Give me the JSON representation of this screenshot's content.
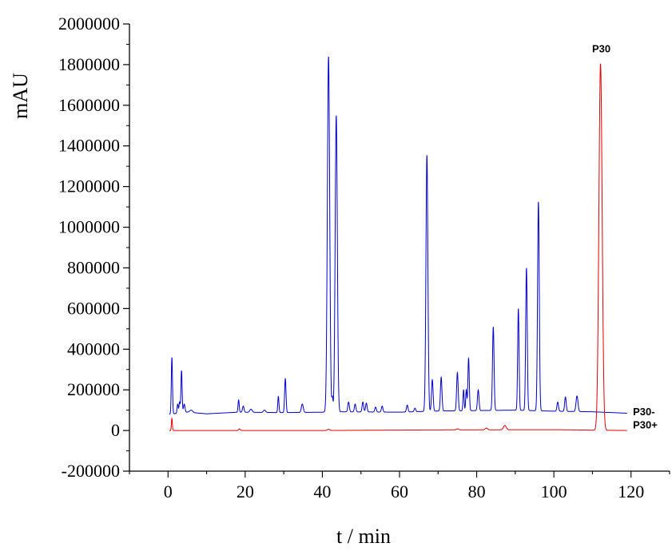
{
  "chart_data": {
    "type": "line",
    "title": "",
    "xlabel": "t / min",
    "ylabel": "mAU",
    "xlim": [
      -10,
      130
    ],
    "ylim": [
      -200000,
      2000000
    ],
    "x_ticks": [
      0,
      20,
      40,
      60,
      80,
      100,
      120
    ],
    "y_ticks": [
      -200000,
      0,
      200000,
      400000,
      600000,
      800000,
      1000000,
      1200000,
      1400000,
      1600000,
      1800000,
      2000000
    ],
    "grid": false,
    "series": [
      {
        "name": "P30-",
        "color": "#0000c8",
        "x_range": [
          0.3,
          119
        ],
        "baseline": [
          [
            0.3,
            80000
          ],
          [
            5,
            90000
          ],
          [
            10,
            82000
          ],
          [
            18,
            90000
          ],
          [
            30,
            88000
          ],
          [
            40,
            90000
          ],
          [
            45,
            92000
          ],
          [
            60,
            90000
          ],
          [
            70,
            96000
          ],
          [
            80,
            98000
          ],
          [
            90,
            100000
          ],
          [
            100,
            95000
          ],
          [
            110,
            92000
          ],
          [
            119,
            85000
          ]
        ],
        "peaks": [
          {
            "t": 1.0,
            "height": 360000,
            "w": 0.15
          },
          {
            "t": 2.5,
            "height": 130000,
            "w": 0.15
          },
          {
            "t": 3.0,
            "height": 140000,
            "w": 0.15
          },
          {
            "t": 3.5,
            "height": 295000,
            "w": 0.15
          },
          {
            "t": 4.2,
            "height": 130000,
            "w": 0.2
          },
          {
            "t": 6.0,
            "height": 100000,
            "w": 0.4
          },
          {
            "t": 18.3,
            "height": 150000,
            "w": 0.15
          },
          {
            "t": 19.5,
            "height": 120000,
            "w": 0.2
          },
          {
            "t": 21.5,
            "height": 105000,
            "w": 0.3
          },
          {
            "t": 25.0,
            "height": 100000,
            "w": 0.3
          },
          {
            "t": 28.6,
            "height": 168000,
            "w": 0.15
          },
          {
            "t": 30.4,
            "height": 255000,
            "w": 0.18
          },
          {
            "t": 34.8,
            "height": 130000,
            "w": 0.25
          },
          {
            "t": 41.6,
            "height": 1840000,
            "w": 0.3
          },
          {
            "t": 42.6,
            "height": 160000,
            "w": 0.15
          },
          {
            "t": 43.6,
            "height": 1550000,
            "w": 0.28
          },
          {
            "t": 46.8,
            "height": 140000,
            "w": 0.2
          },
          {
            "t": 48.5,
            "height": 130000,
            "w": 0.2
          },
          {
            "t": 50.5,
            "height": 140000,
            "w": 0.2
          },
          {
            "t": 51.4,
            "height": 135000,
            "w": 0.2
          },
          {
            "t": 53.8,
            "height": 115000,
            "w": 0.2
          },
          {
            "t": 55.5,
            "height": 120000,
            "w": 0.2
          },
          {
            "t": 62.0,
            "height": 125000,
            "w": 0.2
          },
          {
            "t": 64.0,
            "height": 110000,
            "w": 0.2
          },
          {
            "t": 67.1,
            "height": 1355000,
            "w": 0.25
          },
          {
            "t": 68.5,
            "height": 250000,
            "w": 0.2
          },
          {
            "t": 70.8,
            "height": 262000,
            "w": 0.2
          },
          {
            "t": 75.0,
            "height": 285000,
            "w": 0.2
          },
          {
            "t": 76.6,
            "height": 200000,
            "w": 0.15
          },
          {
            "t": 77.3,
            "height": 200000,
            "w": 0.15
          },
          {
            "t": 77.9,
            "height": 355000,
            "w": 0.18
          },
          {
            "t": 80.4,
            "height": 200000,
            "w": 0.2
          },
          {
            "t": 84.3,
            "height": 510000,
            "w": 0.2
          },
          {
            "t": 90.8,
            "height": 600000,
            "w": 0.18
          },
          {
            "t": 92.9,
            "height": 800000,
            "w": 0.2
          },
          {
            "t": 96.0,
            "height": 1125000,
            "w": 0.22
          },
          {
            "t": 101.0,
            "height": 140000,
            "w": 0.2
          },
          {
            "t": 103.0,
            "height": 165000,
            "w": 0.2
          },
          {
            "t": 106.0,
            "height": 170000,
            "w": 0.25
          }
        ]
      },
      {
        "name": "P30+",
        "color": "#e00000",
        "x_range": [
          0.3,
          119
        ],
        "baseline": [
          [
            0.3,
            0
          ],
          [
            40,
            0
          ],
          [
            70,
            3000
          ],
          [
            100,
            4000
          ],
          [
            119,
            0
          ]
        ],
        "peaks": [
          {
            "t": 1.0,
            "height": 60000,
            "w": 0.12
          },
          {
            "t": 18.5,
            "height": 8000,
            "w": 0.2
          },
          {
            "t": 41.6,
            "height": 6000,
            "w": 0.3
          },
          {
            "t": 75.0,
            "height": 8000,
            "w": 0.3
          },
          {
            "t": 82.5,
            "height": 12000,
            "w": 0.3
          },
          {
            "t": 87.3,
            "height": 25000,
            "w": 0.35
          },
          {
            "t": 112.1,
            "height": 1805000,
            "w": 0.42
          }
        ]
      }
    ],
    "annotations": [
      {
        "text": "P30",
        "x": 112.3,
        "y": 1880000
      },
      {
        "text": "P30-",
        "x": 120.5,
        "y": 95000
      },
      {
        "text": "P30+",
        "x": 120.5,
        "y": 30000
      }
    ]
  }
}
